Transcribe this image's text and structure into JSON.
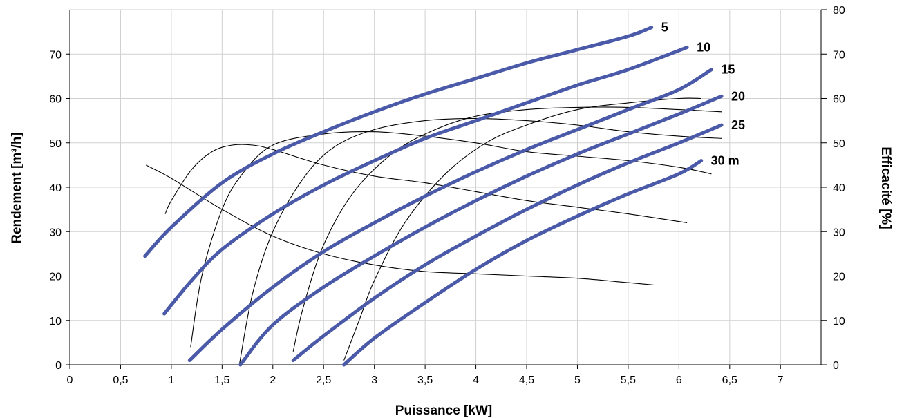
{
  "chart_data": {
    "type": "line",
    "xlabel": "Puissance [kW]",
    "ylabel": "Rendement [m³/h]",
    "y2label": "Efficacité [%]",
    "xlim": [
      0,
      7.4
    ],
    "ylim": [
      0,
      80
    ],
    "y2lim": [
      0,
      80
    ],
    "x_ticks": [
      0,
      0.5,
      1,
      1.5,
      2,
      2.5,
      3,
      3.5,
      4,
      4.5,
      5,
      5.5,
      6,
      6.5,
      7
    ],
    "x_tick_labels": [
      "0",
      "0,5",
      "1",
      "1,5",
      "2",
      "2,5",
      "3",
      "3,5",
      "4",
      "4,5",
      "5",
      "5,5",
      "6",
      "6,5",
      "7"
    ],
    "y_ticks": [
      0,
      10,
      20,
      30,
      40,
      50,
      60,
      70
    ],
    "y_tick_labels": [
      "0",
      "10",
      "20",
      "30",
      "40",
      "50",
      "60",
      "70"
    ],
    "y2_ticks": [
      0,
      10,
      20,
      30,
      40,
      50,
      60,
      70,
      80
    ],
    "y2_tick_labels": [
      "0",
      "10",
      "20",
      "30",
      "40",
      "50",
      "60",
      "70",
      "80"
    ],
    "grid": true,
    "colors": {
      "flow": "#4a5aa8",
      "efficiency": "#000000",
      "grid": "#d0d0d0"
    },
    "series": [
      {
        "name": "5",
        "label": "5",
        "kind": "flow",
        "points": [
          [
            0.74,
            24.5
          ],
          [
            1.0,
            31
          ],
          [
            1.5,
            41
          ],
          [
            2.0,
            47.5
          ],
          [
            2.5,
            52.5
          ],
          [
            3.0,
            57
          ],
          [
            3.5,
            61
          ],
          [
            4.0,
            64.5
          ],
          [
            4.5,
            68
          ],
          [
            5.0,
            71
          ],
          [
            5.5,
            74
          ],
          [
            5.73,
            76
          ]
        ]
      },
      {
        "name": "10",
        "label": "10",
        "kind": "flow",
        "points": [
          [
            0.93,
            11.5
          ],
          [
            1.2,
            19
          ],
          [
            1.5,
            26
          ],
          [
            2.0,
            34
          ],
          [
            2.5,
            40.5
          ],
          [
            3.0,
            46
          ],
          [
            3.5,
            51
          ],
          [
            4.0,
            55
          ],
          [
            4.5,
            59
          ],
          [
            5.0,
            63
          ],
          [
            5.5,
            66.5
          ],
          [
            6.08,
            71.5
          ]
        ]
      },
      {
        "name": "15",
        "label": "15",
        "kind": "flow",
        "points": [
          [
            1.18,
            1
          ],
          [
            1.5,
            8
          ],
          [
            2.0,
            17.5
          ],
          [
            2.5,
            25.5
          ],
          [
            3.0,
            32
          ],
          [
            3.5,
            38
          ],
          [
            4.0,
            43.5
          ],
          [
            4.5,
            48.5
          ],
          [
            5.0,
            53
          ],
          [
            5.5,
            57.5
          ],
          [
            6.0,
            62
          ],
          [
            6.32,
            66.5
          ]
        ]
      },
      {
        "name": "20",
        "label": "20",
        "kind": "flow",
        "points": [
          [
            1.68,
            0
          ],
          [
            2.0,
            9
          ],
          [
            2.5,
            17.5
          ],
          [
            3.0,
            24.5
          ],
          [
            3.5,
            31
          ],
          [
            4.0,
            37
          ],
          [
            4.5,
            42.5
          ],
          [
            5.0,
            47.5
          ],
          [
            5.5,
            52
          ],
          [
            6.0,
            56.5
          ],
          [
            6.42,
            60.5
          ]
        ]
      },
      {
        "name": "25",
        "label": "25",
        "kind": "flow",
        "points": [
          [
            2.2,
            1
          ],
          [
            2.5,
            6.5
          ],
          [
            3.0,
            15
          ],
          [
            3.5,
            22.5
          ],
          [
            4.0,
            29
          ],
          [
            4.5,
            35
          ],
          [
            5.0,
            40.5
          ],
          [
            5.5,
            45.5
          ],
          [
            6.0,
            50
          ],
          [
            6.42,
            54
          ]
        ]
      },
      {
        "name": "30 m",
        "label": "30 m",
        "kind": "flow",
        "points": [
          [
            2.7,
            0
          ],
          [
            3.0,
            6
          ],
          [
            3.5,
            14
          ],
          [
            4.0,
            21.5
          ],
          [
            4.5,
            28
          ],
          [
            5.0,
            33.5
          ],
          [
            5.5,
            38.5
          ],
          [
            6.0,
            43
          ],
          [
            6.22,
            46
          ]
        ]
      }
    ],
    "efficiency_curves": [
      [
        [
          0.75,
          45
        ],
        [
          1.0,
          42
        ],
        [
          1.5,
          35
        ],
        [
          2.0,
          29
        ],
        [
          2.5,
          25
        ],
        [
          3.0,
          22.5
        ],
        [
          3.5,
          21
        ],
        [
          4.0,
          20.5
        ],
        [
          4.5,
          20
        ],
        [
          5.0,
          19.5
        ],
        [
          5.5,
          18.5
        ],
        [
          5.75,
          18
        ]
      ],
      [
        [
          0.94,
          34
        ],
        [
          1.0,
          37
        ],
        [
          1.2,
          44
        ],
        [
          1.4,
          48
        ],
        [
          1.6,
          49.5
        ],
        [
          1.8,
          49.5
        ],
        [
          2.0,
          48.5
        ],
        [
          2.5,
          45
        ],
        [
          3.0,
          42.5
        ],
        [
          3.5,
          41
        ],
        [
          4.0,
          39
        ],
        [
          4.5,
          37
        ],
        [
          5.0,
          35.5
        ],
        [
          5.5,
          34
        ],
        [
          6.08,
          32
        ]
      ],
      [
        [
          1.19,
          4
        ],
        [
          1.3,
          20
        ],
        [
          1.5,
          35
        ],
        [
          1.7,
          43
        ],
        [
          2.0,
          49.5
        ],
        [
          2.5,
          52
        ],
        [
          3.0,
          52.5
        ],
        [
          3.5,
          51.5
        ],
        [
          4.0,
          50
        ],
        [
          4.5,
          48
        ],
        [
          5.0,
          47
        ],
        [
          5.5,
          46
        ],
        [
          6.0,
          44.5
        ],
        [
          6.32,
          43
        ]
      ],
      [
        [
          1.67,
          0
        ],
        [
          1.8,
          16
        ],
        [
          2.0,
          30
        ],
        [
          2.3,
          42
        ],
        [
          2.6,
          49
        ],
        [
          3.0,
          53
        ],
        [
          3.5,
          55
        ],
        [
          4.0,
          55.5
        ],
        [
          4.5,
          55
        ],
        [
          5.0,
          54
        ],
        [
          5.5,
          52.5
        ],
        [
          6.0,
          51.5
        ],
        [
          6.42,
          51
        ]
      ],
      [
        [
          2.2,
          3
        ],
        [
          2.3,
          13
        ],
        [
          2.5,
          27
        ],
        [
          2.8,
          39
        ],
        [
          3.2,
          48
        ],
        [
          3.6,
          53
        ],
        [
          4.0,
          56
        ],
        [
          4.5,
          57.5
        ],
        [
          5.0,
          58
        ],
        [
          5.5,
          58
        ],
        [
          6.0,
          57.5
        ],
        [
          6.42,
          57
        ]
      ],
      [
        [
          2.7,
          1
        ],
        [
          2.85,
          10
        ],
        [
          3.0,
          19
        ],
        [
          3.3,
          32
        ],
        [
          3.7,
          43
        ],
        [
          4.1,
          50
        ],
        [
          4.5,
          54
        ],
        [
          5.0,
          57.5
        ],
        [
          5.5,
          59
        ],
        [
          6.0,
          60
        ],
        [
          6.22,
          60
        ]
      ]
    ]
  }
}
